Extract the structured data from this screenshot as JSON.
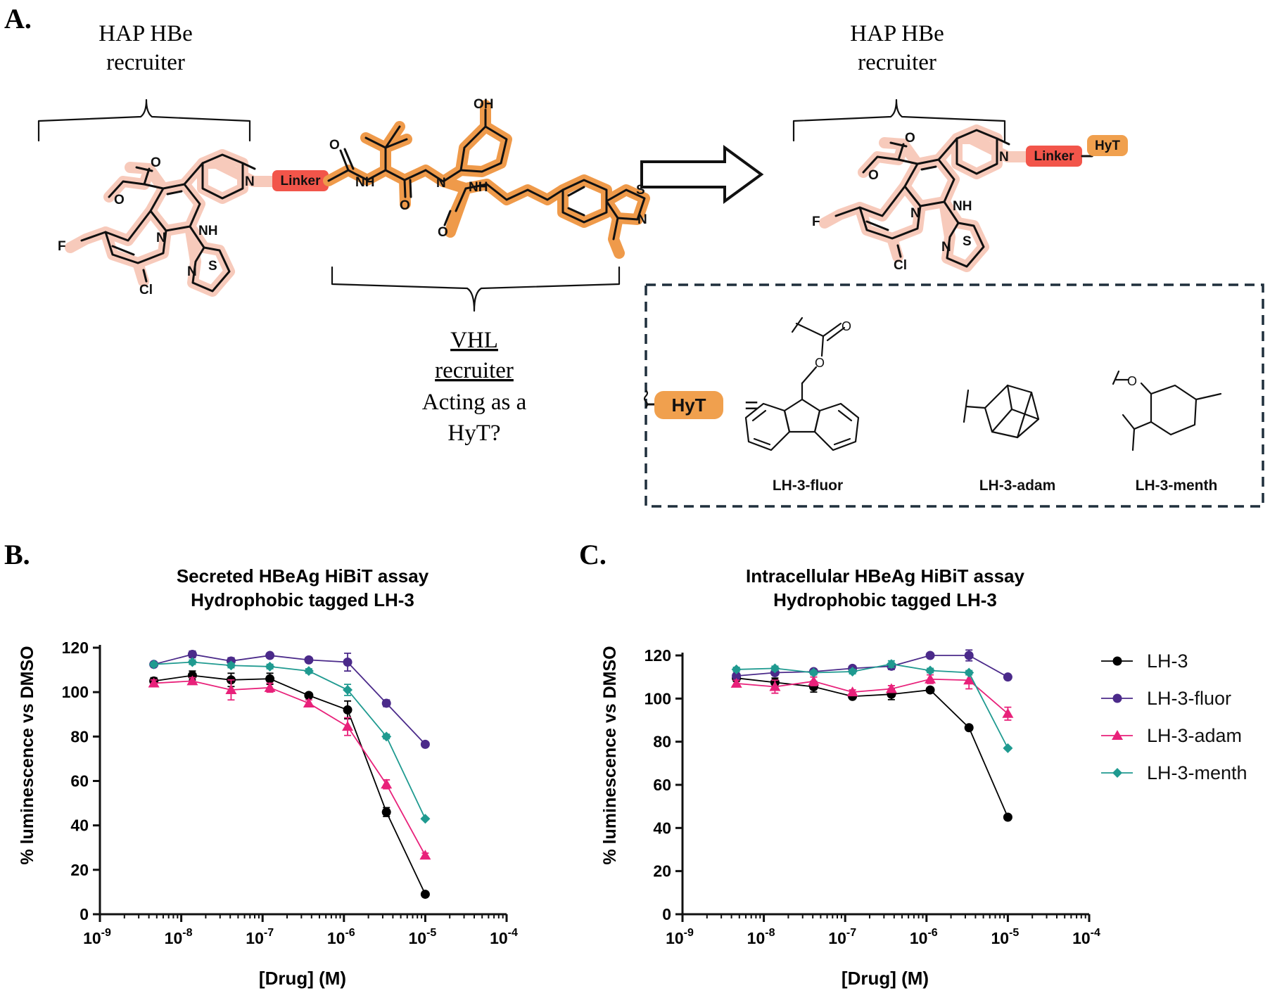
{
  "panels": {
    "a": "A.",
    "b": "B.",
    "c": "C."
  },
  "scheme": {
    "hap_label_left": [
      "HAP HBe",
      "recruiter"
    ],
    "hap_label_right": [
      "HAP HBe",
      "recruiter"
    ],
    "vhl_label": [
      "VHL",
      "recruiter",
      "Acting as a",
      "HyT?"
    ],
    "linker_label": "Linker",
    "hyt_label": "HyT",
    "equals": "=",
    "atoms": {
      "nh": "NH",
      "n": "N",
      "s": "S",
      "f": "F",
      "cl": "Cl",
      "oh": "OH",
      "o": "O"
    },
    "hyt_options": [
      "LH-3-fluor",
      "LH-3-adam",
      "LH-3-menth"
    ],
    "colors": {
      "hap": "#f7cabb",
      "vhl": "#ef9a4a",
      "linker": "#f2554a",
      "hyt": "#f0a04e",
      "box": "#1f2f3c"
    }
  },
  "chart_data": [
    {
      "type": "line",
      "title": [
        "Secreted HBeAg HiBiT assay",
        "Hydrophobic tagged LH-3"
      ],
      "xlabel": "[Drug] (M)",
      "ylabel": "% luminescence vs DMSO",
      "xscale": "log",
      "xlim": [
        1e-09,
        0.0001
      ],
      "ylim": [
        0,
        120
      ],
      "yticks": [
        0,
        20,
        40,
        60,
        80,
        100,
        120
      ],
      "x": [
        4.6e-09,
        1.37e-08,
        4.1e-08,
        1.23e-07,
        3.7e-07,
        1.11e-06,
        3.33e-06,
        1e-05
      ],
      "series": [
        {
          "name": "LH-3",
          "color": "#000000",
          "marker": "circle",
          "values": [
            105,
            107.5,
            105.5,
            106,
            98.5,
            92,
            46,
            9
          ],
          "errors": [
            1.5,
            2,
            3,
            2.5,
            1,
            4,
            2,
            0.5
          ]
        },
        {
          "name": "LH-3-fluor",
          "color": "#4b2a8a",
          "marker": "circle",
          "values": [
            112.5,
            117,
            114,
            116.5,
            114.5,
            113.5,
            95,
            76.5
          ],
          "errors": [
            1,
            1.5,
            1.5,
            1,
            1,
            4,
            1.5,
            1
          ]
        },
        {
          "name": "LH-3-adam",
          "color": "#e8217a",
          "marker": "triangle",
          "values": [
            104,
            105,
            101,
            102,
            95,
            84.5,
            58.5,
            26.5
          ],
          "errors": [
            1.5,
            1.5,
            4.5,
            2,
            1.5,
            4,
            2,
            1
          ]
        },
        {
          "name": "LH-3-menth",
          "color": "#1f9a90",
          "marker": "diamond",
          "values": [
            112.5,
            113.5,
            112,
            111.5,
            109.5,
            101,
            80,
            43
          ],
          "errors": [
            1,
            1,
            1,
            1,
            1,
            2.5,
            1,
            0.5
          ]
        }
      ]
    },
    {
      "type": "line",
      "title": [
        "Intracellular HBeAg HiBiT assay",
        "Hydrophobic tagged LH-3"
      ],
      "xlabel": "[Drug] (M)",
      "ylabel": "% luminescence vs DMSO",
      "xscale": "log",
      "xlim": [
        1e-09,
        0.0001
      ],
      "ylim": [
        0,
        120
      ],
      "yticks": [
        0,
        20,
        40,
        60,
        80,
        100,
        120
      ],
      "x": [
        4.6e-09,
        1.37e-08,
        4.1e-08,
        1.23e-07,
        3.7e-07,
        1.11e-06,
        3.33e-06,
        1e-05
      ],
      "legend": "right",
      "series": [
        {
          "name": "LH-3",
          "color": "#000000",
          "marker": "circle",
          "values": [
            109.5,
            107.5,
            105.5,
            101,
            102,
            104,
            86.5,
            45
          ],
          "errors": [
            1.5,
            2,
            2.5,
            1,
            2.5,
            1,
            1,
            0.5
          ]
        },
        {
          "name": "LH-3-fluor",
          "color": "#4b2a8a",
          "marker": "circle",
          "values": [
            110.5,
            112,
            112.5,
            114,
            115,
            120,
            120,
            110
          ],
          "errors": [
            1,
            1,
            1,
            1,
            1.5,
            1,
            2.5,
            1
          ]
        },
        {
          "name": "LH-3-adam",
          "color": "#e8217a",
          "marker": "triangle",
          "values": [
            107,
            105.5,
            108,
            103,
            104.5,
            109,
            108.5,
            93
          ],
          "errors": [
            1.5,
            3,
            2,
            1,
            1.5,
            2,
            4,
            3
          ]
        },
        {
          "name": "LH-3-menth",
          "color": "#1f9a90",
          "marker": "diamond",
          "values": [
            113.5,
            114,
            112,
            112.5,
            116,
            113,
            112,
            77
          ],
          "errors": [
            1,
            1,
            1,
            1,
            1.5,
            1,
            1,
            0.5
          ]
        }
      ]
    }
  ]
}
